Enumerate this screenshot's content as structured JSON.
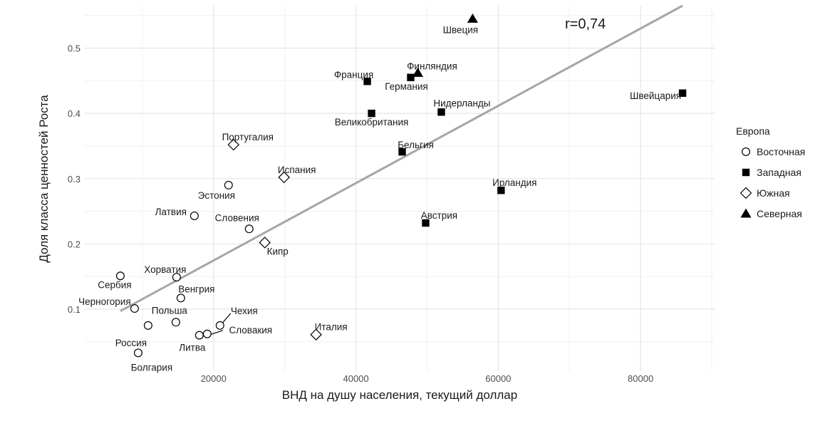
{
  "chart_data": {
    "type": "scatter",
    "xlabel": "ВНД на душу населения, текущий доллар",
    "ylabel": "Доля класса ценностей Роста",
    "xlim": [
      1800,
      90500
    ],
    "ylim": [
      0.005,
      0.565
    ],
    "x_ticks": [
      20000,
      40000,
      60000,
      80000
    ],
    "x_tick_labels": [
      "20000",
      "40000",
      "60000",
      "80000"
    ],
    "y_ticks": [
      0.1,
      0.2,
      0.3,
      0.4,
      0.5
    ],
    "y_tick_labels": [
      "0.1",
      "0.2",
      "0.3",
      "0.4",
      "0.5"
    ],
    "grid": true,
    "legend": {
      "title": "Европа",
      "position": "right",
      "entries": [
        {
          "name": "Восточная",
          "shape": "circle-open"
        },
        {
          "name": "Западная",
          "shape": "square-filled"
        },
        {
          "name": "Южная",
          "shape": "diamond-open"
        },
        {
          "name": "Северная",
          "shape": "triangle-filled"
        }
      ]
    },
    "series": [
      {
        "name": "Восточная",
        "shape": "circle-open",
        "points": [
          {
            "label": "Сербия",
            "x": 6900,
            "y": 0.151
          },
          {
            "label": "Черногория",
            "x": 8900,
            "y": 0.101
          },
          {
            "label": "Россия",
            "x": 10800,
            "y": 0.075
          },
          {
            "label": "Болгария",
            "x": 9400,
            "y": 0.033
          },
          {
            "label": "Хорватия",
            "x": 14800,
            "y": 0.149
          },
          {
            "label": "Венгрия",
            "x": 15400,
            "y": 0.117
          },
          {
            "label": "Польша",
            "x": 14700,
            "y": 0.08
          },
          {
            "label": "Литва",
            "x": 18000,
            "y": 0.06
          },
          {
            "label": "Словакия",
            "x": 19100,
            "y": 0.062
          },
          {
            "label": "Чехия",
            "x": 20900,
            "y": 0.075
          },
          {
            "label": "Латвия",
            "x": 17300,
            "y": 0.243
          },
          {
            "label": "Эстония",
            "x": 22100,
            "y": 0.29
          },
          {
            "label": "Словения",
            "x": 25000,
            "y": 0.223
          }
        ]
      },
      {
        "name": "Западная",
        "shape": "square-filled",
        "points": [
          {
            "label": "Франция",
            "x": 41600,
            "y": 0.449
          },
          {
            "label": "Германия",
            "x": 47700,
            "y": 0.455
          },
          {
            "label": "Великобритания",
            "x": 42200,
            "y": 0.4
          },
          {
            "label": "Нидерланды",
            "x": 52000,
            "y": 0.402
          },
          {
            "label": "Бельгия",
            "x": 46500,
            "y": 0.341
          },
          {
            "label": "Ирландия",
            "x": 60400,
            "y": 0.282
          },
          {
            "label": "Австрия",
            "x": 49800,
            "y": 0.232
          },
          {
            "label": "Швейцария",
            "x": 85900,
            "y": 0.431
          }
        ]
      },
      {
        "name": "Южная",
        "shape": "diamond-open",
        "points": [
          {
            "label": "Португалия",
            "x": 22800,
            "y": 0.352
          },
          {
            "label": "Испания",
            "x": 29900,
            "y": 0.302
          },
          {
            "label": "Кипр",
            "x": 27200,
            "y": 0.202
          },
          {
            "label": "Италия",
            "x": 34400,
            "y": 0.061
          }
        ]
      },
      {
        "name": "Северная",
        "shape": "triangle-filled",
        "points": [
          {
            "label": "Финляндия",
            "x": 48700,
            "y": 0.462
          },
          {
            "label": "Швеция",
            "x": 56400,
            "y": 0.545
          }
        ]
      }
    ],
    "trend_line": {
      "x": [
        6900,
        85900
      ],
      "y": [
        0.097,
        0.565
      ]
    },
    "annotation": "r=0,74"
  }
}
